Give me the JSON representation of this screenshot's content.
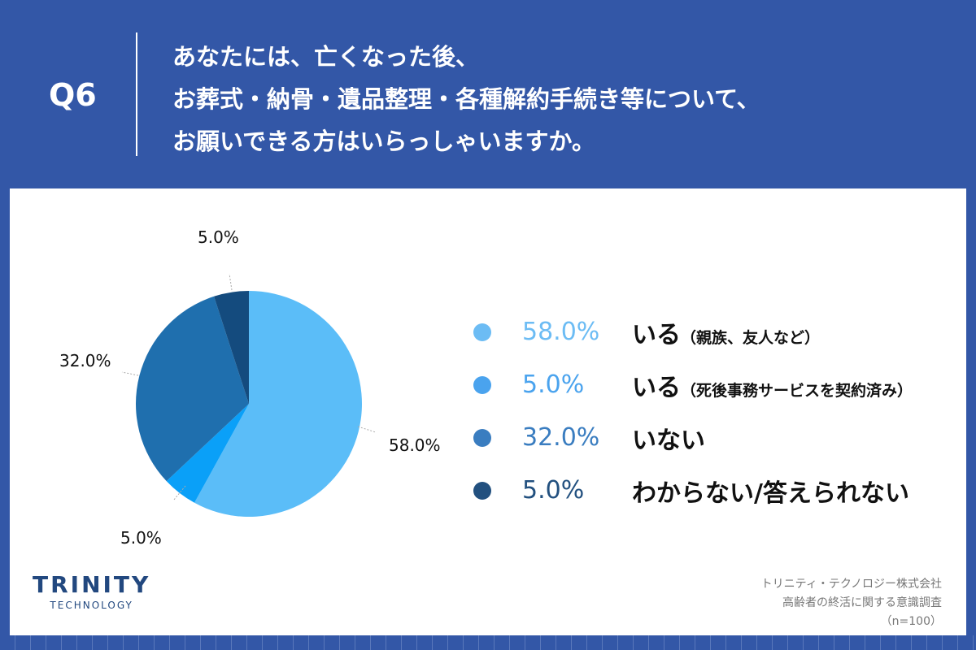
{
  "header": {
    "qnum": "Q6",
    "lines": [
      "あなたには、亡くなった後、",
      "お葬式・納骨・遺品整理・各種解約手続き等について、",
      "お願いできる方はいらっしゃいますか。"
    ]
  },
  "chart_data": {
    "type": "pie",
    "slices": [
      {
        "label": "いる",
        "sub": "（親族、友人など）",
        "value": 58.0,
        "pct_label": "58.0%",
        "color": "#5bbdf8",
        "legend_color": "#6cbcf4"
      },
      {
        "label": "いる",
        "sub": "（死後事務サービスを契約済み）",
        "value": 5.0,
        "pct_label": "5.0%",
        "color": "#0aa0f8",
        "legend_color": "#4aa3ee"
      },
      {
        "label": "いない",
        "sub": "",
        "value": 32.0,
        "pct_label": "32.0%",
        "color": "#1f6fae",
        "legend_color": "#3a7dc0"
      },
      {
        "label": "わからない/答えられない",
        "sub": "",
        "value": 5.0,
        "pct_label": "5.0%",
        "color": "#144b7e",
        "legend_color": "#22507f"
      }
    ]
  },
  "logo": {
    "name": "TRINITY",
    "sub": "TECHNOLOGY"
  },
  "source": {
    "lines": [
      "トリニティ・テクノロジー株式会社",
      "高齢者の終活に関する意識調査",
      "（n=100）"
    ]
  }
}
